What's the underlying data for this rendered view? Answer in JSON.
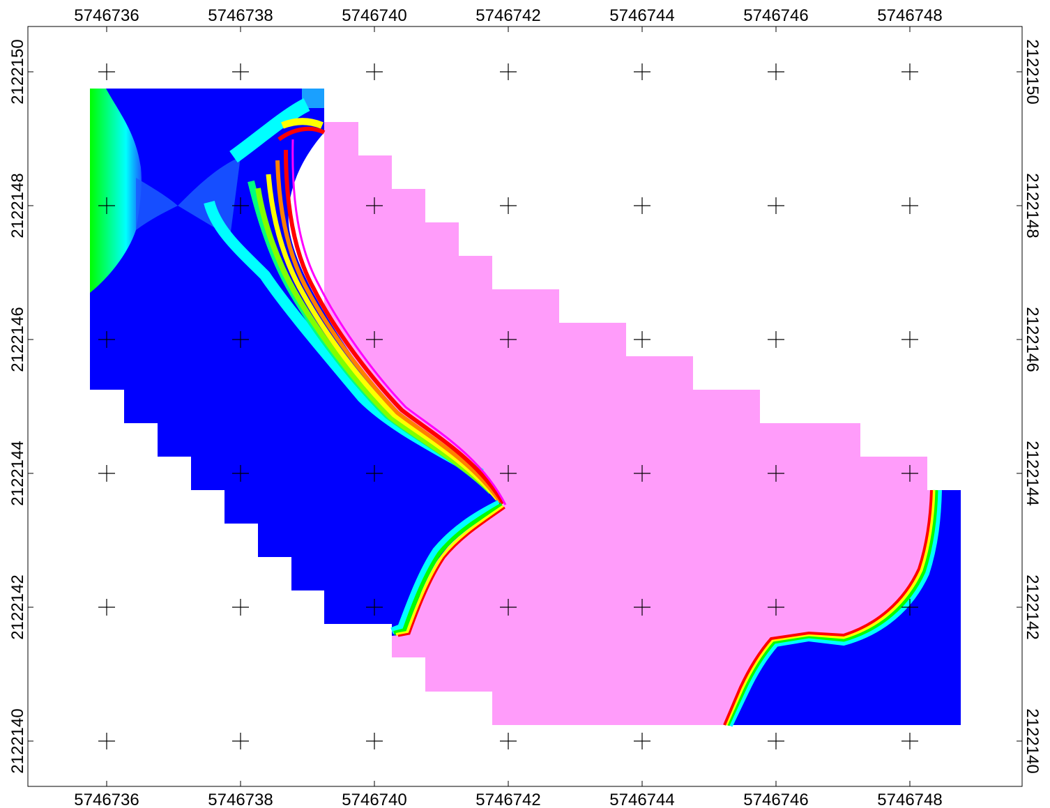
{
  "map": {
    "x_axis": {
      "ticks": [
        "5746736",
        "5746738",
        "5746740",
        "5746742",
        "5746744",
        "5746746",
        "5746748"
      ]
    },
    "y_axis": {
      "ticks": [
        "2122150",
        "2122148",
        "2122146",
        "2122144",
        "2122142",
        "2122140"
      ]
    },
    "colors": {
      "land": "#ff9cfa",
      "water": "#0000ff",
      "shallow_blue": "#1a5cff",
      "cyan": "#00ffff",
      "green": "#00ff00",
      "yellow": "#ffff00",
      "orange": "#ff8000",
      "red": "#ff0000",
      "magenta": "#ff00ff",
      "grid_cross": "#000000"
    }
  }
}
